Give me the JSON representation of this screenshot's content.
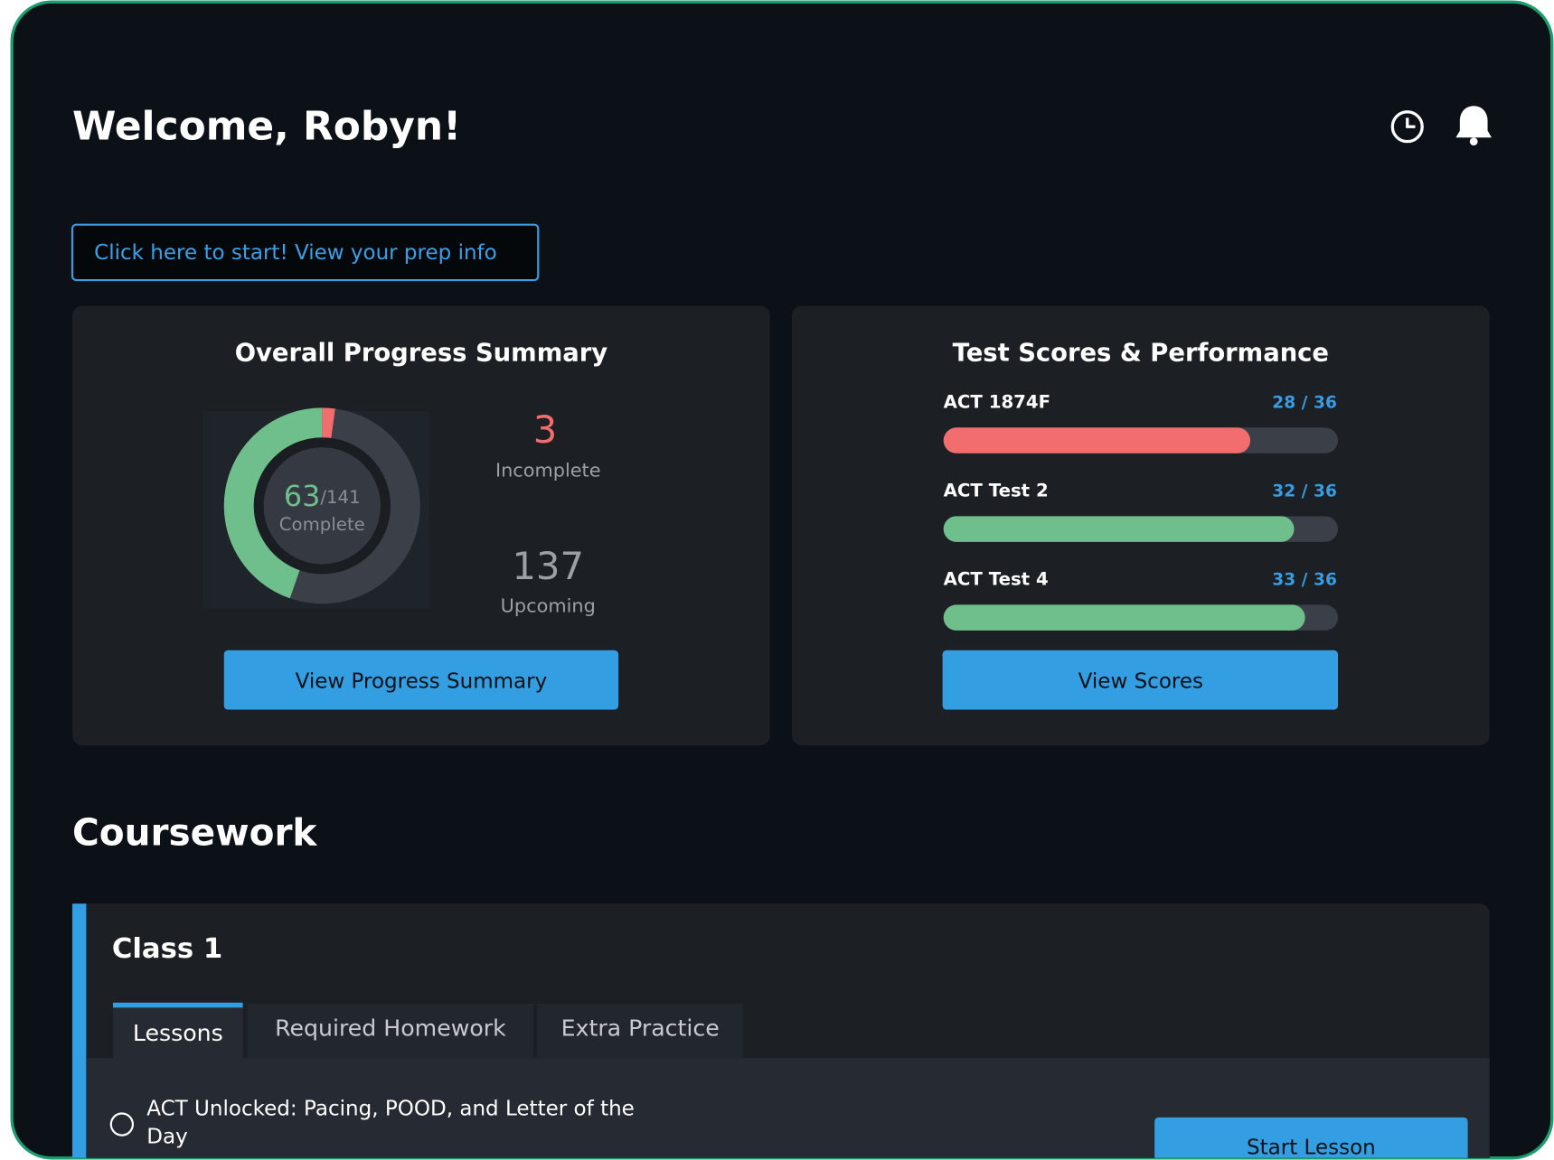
{
  "header": {
    "title": "Welcome, Robyn!"
  },
  "prep_link": "Click here to start! View your prep info",
  "progress": {
    "title": "Overall Progress Summary",
    "complete": 63,
    "total": {
      "value": 141,
      "label": "/141"
    },
    "complete_label": "Complete",
    "incomplete": 3,
    "incomplete_label": "Incomplete",
    "upcoming": 137,
    "upcoming_label": "Upcoming",
    "button": "View Progress Summary"
  },
  "score_card": {
    "title": "Test Scores & Performance",
    "button": "View Scores",
    "tests": [
      {
        "name": "ACT 1874F",
        "score": 28,
        "max": 36,
        "label": "28 / 36",
        "color": "#f26d6d"
      },
      {
        "name": "ACT Test 2",
        "score": 32,
        "max": 36,
        "label": "32 / 36",
        "color": "#6fbf8c"
      },
      {
        "name": "ACT Test 4",
        "score": 33,
        "max": 36,
        "label": "33 / 36",
        "color": "#6fbf8c"
      }
    ]
  },
  "coursework": {
    "title": "Coursework",
    "class_title": "Class 1",
    "tabs": [
      "Lessons",
      "Required Homework",
      "Extra Practice"
    ],
    "lesson": "ACT Unlocked: Pacing, POOD, and Letter of the Day",
    "lesson_button": "Start Lesson"
  }
}
